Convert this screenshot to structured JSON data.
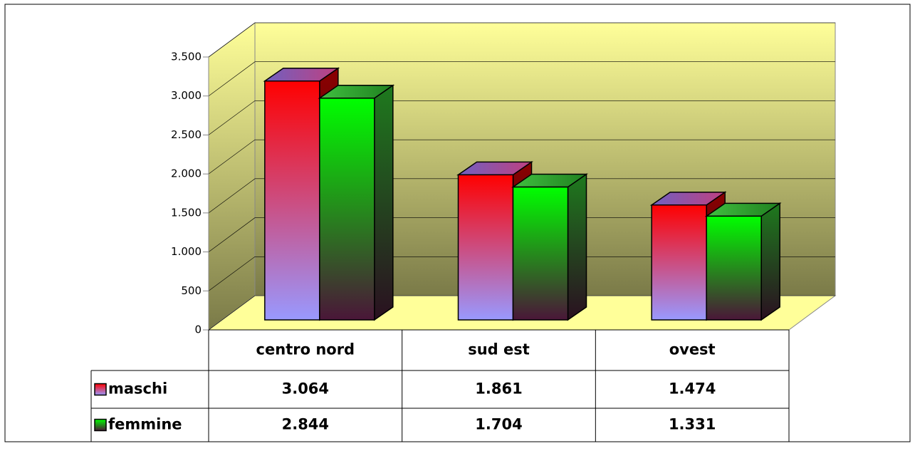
{
  "chart_data": {
    "type": "bar3d",
    "categories": [
      "centro nord",
      "sud est",
      "ovest"
    ],
    "series": [
      {
        "name": "maschi",
        "color": "#ff0000",
        "values": [
          3064,
          1861,
          1474
        ],
        "value_labels": [
          "3.064",
          "1.861",
          "1.474"
        ]
      },
      {
        "name": "femmine",
        "color": "#00ff00",
        "values": [
          2844,
          1704,
          1331
        ],
        "value_labels": [
          "2.844",
          "1.704",
          "1.331"
        ]
      }
    ],
    "ylim": [
      0,
      3500
    ],
    "yticks": [
      0,
      500,
      {
        "value": 1000,
        "label": "1.000"
      },
      {
        "value": 1500,
        "label": "1.500"
      },
      {
        "value": 2000,
        "label": "2.000"
      },
      {
        "value": 2500,
        "label": "2.500"
      },
      {
        "value": 3000,
        "label": "3.000"
      },
      {
        "value": 3500,
        "label": "3.500"
      }
    ],
    "grid": true,
    "legend": "table"
  }
}
